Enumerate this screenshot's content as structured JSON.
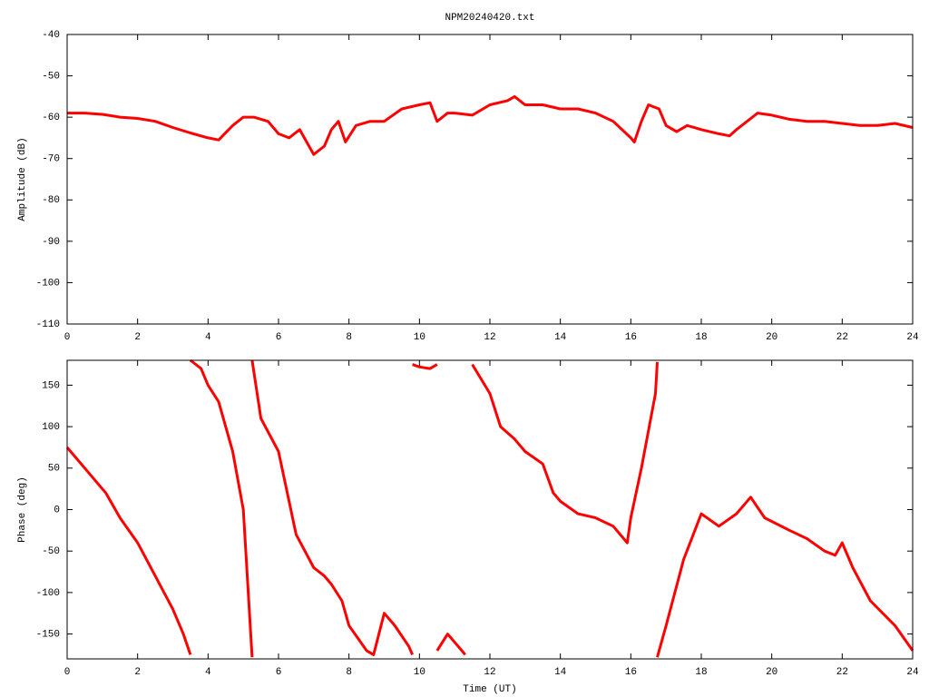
{
  "chart_data": [
    {
      "type": "line",
      "title": "NPM20240420.txt",
      "ylabel": "Amplitude (dB)",
      "color": "#ff0000",
      "xlim": [
        0,
        24
      ],
      "xticks": [
        0,
        2,
        4,
        6,
        8,
        10,
        12,
        14,
        16,
        18,
        20,
        22,
        24
      ],
      "ylim": [
        -110,
        -40
      ],
      "yticks": [
        -40,
        -50,
        -60,
        -70,
        -80,
        -90,
        -100,
        -110
      ],
      "x": [
        0,
        0.5,
        1,
        1.5,
        2,
        2.5,
        3,
        3.5,
        4,
        4.3,
        4.7,
        5,
        5.3,
        5.7,
        6,
        6.3,
        6.6,
        7,
        7.3,
        7.5,
        7.7,
        7.9,
        8.2,
        8.6,
        9,
        9.5,
        10,
        10.3,
        10.5,
        10.8,
        11,
        11.5,
        12,
        12.5,
        12.7,
        13,
        13.5,
        14,
        14.5,
        15,
        15.5,
        16,
        16.1,
        16.3,
        16.5,
        16.8,
        17,
        17.3,
        17.6,
        18,
        18.5,
        18.8,
        19,
        19.3,
        19.6,
        20,
        20.5,
        21,
        21.5,
        22,
        22.5,
        23,
        23.5,
        24
      ],
      "values": [
        -59,
        -59,
        -59.3,
        -60,
        -60.3,
        -61,
        -62.5,
        -63.8,
        -65,
        -65.5,
        -62,
        -60,
        -60,
        -61,
        -64,
        -65,
        -63,
        -69,
        -67,
        -63,
        -61,
        -66,
        -62,
        -61,
        -61,
        -58,
        -57,
        -56.5,
        -61,
        -59,
        -59,
        -59.5,
        -57,
        -56,
        -55,
        -57,
        -57,
        -58,
        -58,
        -59,
        -61,
        -65,
        -66,
        -61,
        -57,
        -58,
        -62,
        -63.5,
        -62,
        -63,
        -64,
        -64.5,
        -63,
        -61,
        -59,
        -59.5,
        -60.5,
        -61,
        -61,
        -61.5,
        -62,
        -62,
        -61.5,
        -62.5
      ]
    },
    {
      "type": "line",
      "ylabel": "Phase (deg)",
      "xlabel": "Time (UT)",
      "color": "#ff0000",
      "xlim": [
        0,
        24
      ],
      "xticks": [
        0,
        2,
        4,
        6,
        8,
        10,
        12,
        14,
        16,
        18,
        20,
        22,
        24
      ],
      "ylim": [
        -180,
        180
      ],
      "yticks": [
        150,
        100,
        50,
        0,
        -50,
        -100,
        -150
      ],
      "x": [
        0,
        0.5,
        1,
        1.1,
        1.5,
        2,
        2.5,
        3,
        3.3,
        3.5,
        null,
        3.5,
        3.8,
        4,
        4.3,
        4.7,
        5,
        5.25,
        null,
        5.25,
        5.5,
        6,
        6.5,
        7,
        7.3,
        7.5,
        7.8,
        8,
        8.5,
        8.7,
        9,
        9.3,
        9.7,
        9.8,
        null,
        9.8,
        10,
        10.3,
        10.5,
        null,
        10.5,
        10.8,
        11,
        11.3,
        null,
        11.5,
        12,
        12.3,
        12.7,
        13,
        13.5,
        13.8,
        14,
        14.5,
        15,
        15.5,
        15.9,
        16,
        16.3,
        16.7,
        16.75,
        null,
        16.75,
        17,
        17.5,
        18,
        18.5,
        19,
        19.4,
        19.8,
        20.5,
        21,
        21.5,
        21.8,
        22,
        22.3,
        22.8,
        23.5,
        24
      ],
      "values": [
        75,
        50,
        25,
        20,
        -10,
        -40,
        -80,
        -120,
        -150,
        -175,
        null,
        180,
        170,
        150,
        130,
        70,
        0,
        -178,
        null,
        180,
        110,
        70,
        -30,
        -70,
        -80,
        -90,
        -110,
        -140,
        -170,
        -175,
        -125,
        -140,
        -165,
        -175,
        null,
        175,
        172,
        170,
        175,
        null,
        -170,
        -150,
        -160,
        -175,
        null,
        175,
        140,
        100,
        85,
        70,
        55,
        20,
        10,
        -5,
        -10,
        -20,
        -40,
        -10,
        50,
        140,
        178,
        null,
        -178,
        -140,
        -60,
        -5,
        -20,
        -5,
        15,
        -10,
        -25,
        -35,
        -50,
        -55,
        -40,
        -70,
        -110,
        -140,
        -170
      ]
    }
  ]
}
